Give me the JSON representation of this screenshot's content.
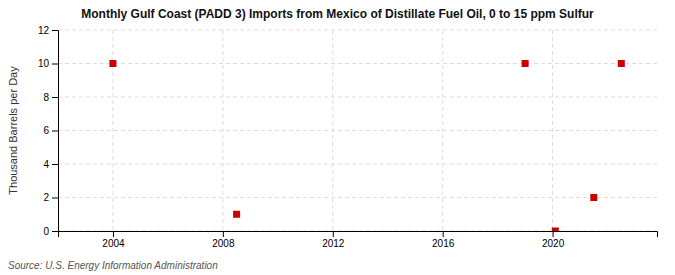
{
  "chart_data": {
    "type": "scatter",
    "title": "Monthly Gulf Coast (PADD 3) Imports from Mexico of Distillate Fuel Oil, 0 to 15 ppm Sulfur",
    "ylabel": "Thousand Barrels per Day",
    "annotations": [
      "Source: U.S. Energy Information Administration"
    ],
    "x": [
      2004.0,
      2008.5,
      2019.0,
      2020.1,
      2021.5,
      2022.5
    ],
    "values": [
      10,
      1,
      10,
      0,
      2,
      10
    ],
    "color": "#cc0000",
    "marker": "square",
    "xlim": [
      2002.0,
      2023.8
    ],
    "ylim": [
      0,
      12
    ],
    "xticks": [
      2004,
      2008,
      2012,
      2016,
      2020
    ],
    "yticks": [
      0,
      2,
      4,
      6,
      8,
      10,
      12
    ],
    "grid": true
  }
}
